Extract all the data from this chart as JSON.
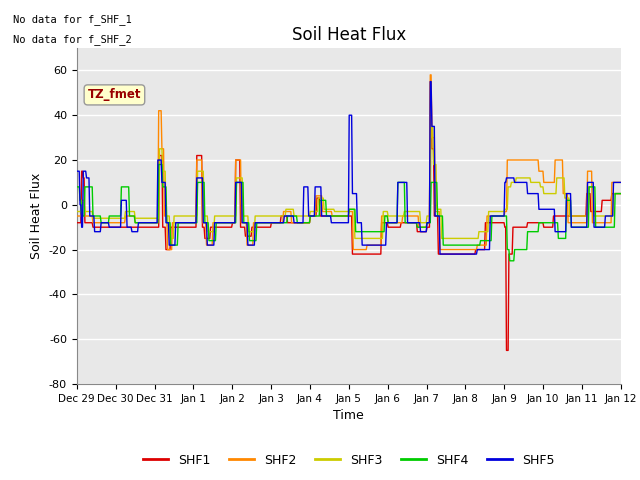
{
  "title": "Soil Heat Flux",
  "xlabel": "Time",
  "ylabel": "Soil Heat Flux",
  "ylim": [
    -80,
    70
  ],
  "yticks": [
    -80,
    -60,
    -40,
    -20,
    0,
    20,
    40,
    60
  ],
  "note1": "No data for f_SHF_1",
  "note2": "No data for f_SHF_2",
  "tz_label": "TZ_fmet",
  "colors": {
    "SHF1": "#dd0000",
    "SHF2": "#ff8800",
    "SHF3": "#cccc00",
    "SHF4": "#00cc00",
    "SHF5": "#0000dd"
  },
  "tick_labels": [
    "Dec 29",
    "Dec 30",
    "Dec 31",
    "Jan 1",
    "Jan 2",
    "Jan 3",
    "Jan 4",
    "Jan 5",
    "Jan 6",
    "Jan 7",
    "Jan 8",
    "Jan 9",
    "Jan 10",
    "Jan 11",
    "Jan 12"
  ],
  "bg_color": "#e8e8e8",
  "plot_bg": "#e8e8e8"
}
